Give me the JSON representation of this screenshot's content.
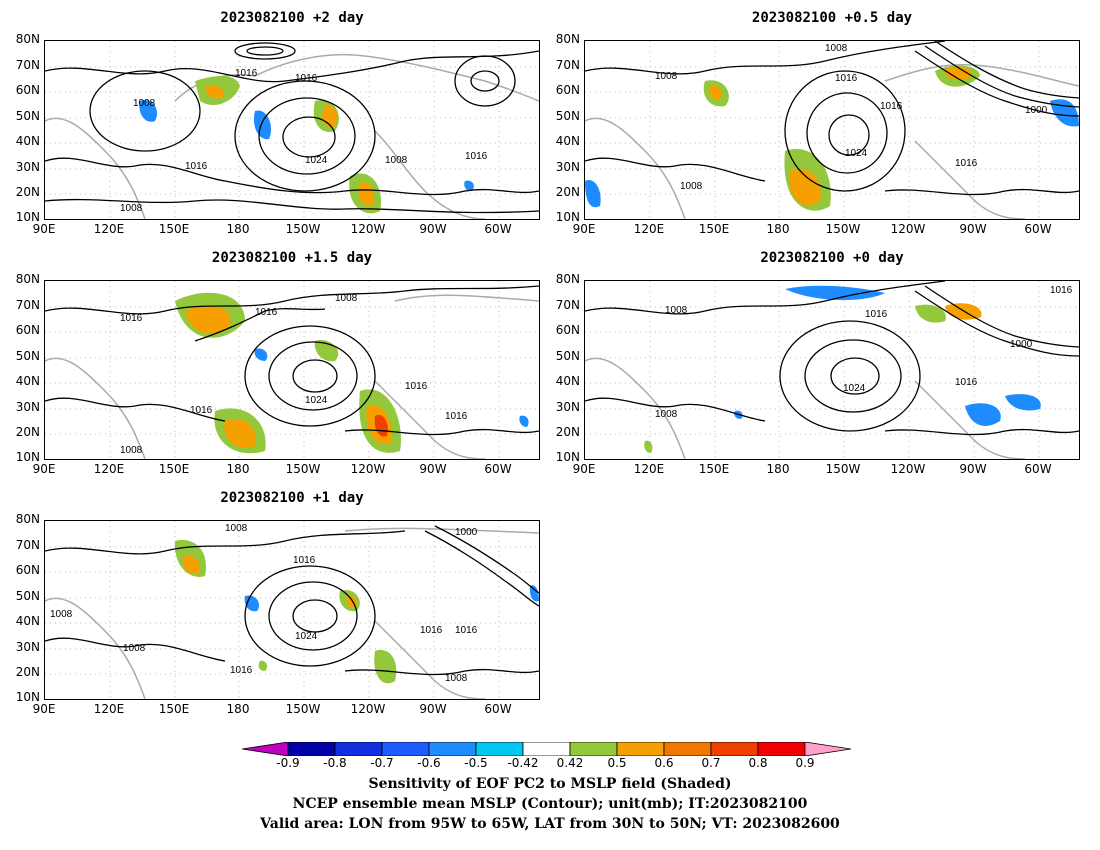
{
  "panels": [
    {
      "title": "2023082100 +2 day",
      "contour_labels": [
        "1016",
        "1016",
        "1008",
        "1024",
        "1016",
        "1008",
        "1016",
        "1008"
      ]
    },
    {
      "title": "2023082100 +0.5 day",
      "contour_labels": [
        "1008",
        "1008",
        "1016",
        "1016",
        "1000",
        "1024",
        "1016",
        "1008"
      ]
    },
    {
      "title": "2023082100 +1.5 day",
      "contour_labels": [
        "1016",
        "1016",
        "1008",
        "1016",
        "1024",
        "1016",
        "1016",
        "1008"
      ]
    },
    {
      "title": "2023082100 +0 day",
      "contour_labels": [
        "1008",
        "1016",
        "1008",
        "1016",
        "1000",
        "1024",
        "1016",
        "1008"
      ]
    },
    {
      "title": "2023082100 +1 day",
      "contour_labels": [
        "1008",
        "1000",
        "1016",
        "1008",
        "1024",
        "1016",
        "1016",
        "1008",
        "1008",
        "1016"
      ]
    }
  ],
  "lat_ticks": [
    "80N",
    "70N",
    "60N",
    "50N",
    "40N",
    "30N",
    "20N",
    "10N"
  ],
  "lon_ticks": [
    "90E",
    "120E",
    "150E",
    "180",
    "150W",
    "120W",
    "90W",
    "60W"
  ],
  "colorbar": {
    "ticks": [
      "-0.9",
      "-0.8",
      "-0.7",
      "-0.6",
      "-0.5",
      "-0.42",
      "0.42",
      "0.5",
      "0.6",
      "0.7",
      "0.8",
      "0.9"
    ],
    "colors": [
      "#c000c0",
      "#0000a8",
      "#1030e0",
      "#1e5cff",
      "#1e8cff",
      "#00c8f0",
      "#ffffff",
      "#94c83c",
      "#f5a000",
      "#f07800",
      "#f04000",
      "#f00000",
      "#ffa0c8"
    ]
  },
  "caption": {
    "line1": "Sensitivity of EOF PC2 to MSLP field (Shaded)",
    "line2": "NCEP ensemble mean MSLP (Contour); unit(mb); IT:2023082100",
    "line3": "Valid area: LON from 95W to 65W, LAT from 30N to 50N; VT: 2023082600"
  }
}
